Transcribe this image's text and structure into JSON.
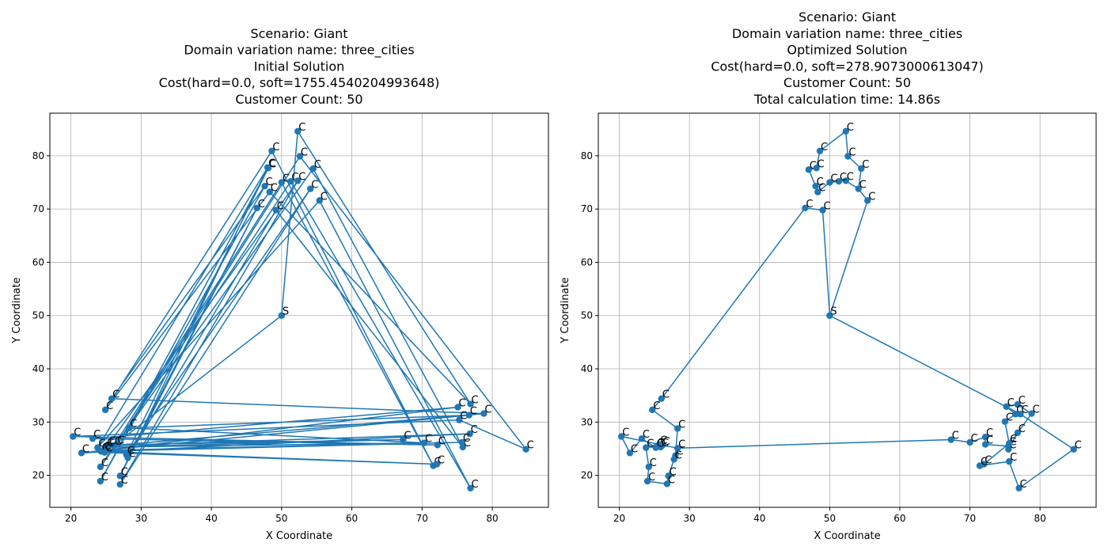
{
  "chart_data": [
    {
      "type": "line",
      "title": [
        "Scenario: Giant",
        "Domain variation name: three_cities",
        "Initial Solution",
        "Cost(hard=0.0, soft=1755.4540204993648)",
        "Customer Count: 50"
      ],
      "xlabel": "X Coordinate",
      "ylabel": "Y Coordinate",
      "xlim": [
        17,
        88
      ],
      "ylim": [
        14,
        88
      ],
      "xticks": [
        20,
        30,
        40,
        50,
        60,
        70,
        80
      ],
      "yticks": [
        20,
        30,
        40,
        50,
        60,
        70,
        80
      ],
      "grid": true,
      "depot": {
        "x": 50,
        "y": 50,
        "label": "S"
      },
      "customer_label": "C",
      "route": [
        [
          50,
          50
        ],
        [
          52.3,
          84.6
        ],
        [
          76.9,
          33.4
        ],
        [
          48.3,
          73.2
        ],
        [
          24.9,
          32.3
        ],
        [
          48.6,
          80.9
        ],
        [
          71.6,
          21.8
        ],
        [
          50,
          75
        ],
        [
          24.2,
          21.6
        ],
        [
          54.5,
          77.6
        ],
        [
          75.8,
          25.3
        ],
        [
          49.2,
          69.8
        ],
        [
          28.1,
          23.3
        ],
        [
          46.5,
          70.2
        ],
        [
          27,
          19.9
        ],
        [
          48,
          77.8
        ],
        [
          23.8,
          25.2
        ],
        [
          55.4,
          71.6
        ],
        [
          76.9,
          17.6
        ],
        [
          51.3,
          75.2
        ],
        [
          26.5,
          25.8
        ],
        [
          52.6,
          79.9
        ],
        [
          84.8,
          24.9
        ],
        [
          75.3,
          30.4
        ],
        [
          20.3,
          27.3
        ],
        [
          72.2,
          25.7
        ],
        [
          23.1,
          26.9
        ],
        [
          75.1,
          32.8
        ],
        [
          21.5,
          24.2
        ],
        [
          76.8,
          27.8
        ],
        [
          26.1,
          25.6
        ],
        [
          78.8,
          31.6
        ],
        [
          25.8,
          34.4
        ],
        [
          47.6,
          74.3
        ],
        [
          24.2,
          18.9
        ],
        [
          48.1,
          77.7
        ],
        [
          27.9,
          23.9
        ],
        [
          54.1,
          73.8
        ],
        [
          27,
          18.3
        ],
        [
          52.3,
          75.3
        ],
        [
          25.3,
          25.7
        ],
        [
          67.3,
          26.7
        ],
        [
          25,
          25.3
        ],
        [
          70.3,
          26.1
        ],
        [
          28.3,
          28.9
        ],
        [
          76.7,
          31.3
        ],
        [
          24.6,
          24.7
        ],
        [
          75.7,
          26.2
        ],
        [
          24.3,
          24.5
        ],
        [
          72.1,
          22.1
        ],
        [
          24.8,
          24.3
        ],
        [
          50,
          50
        ]
      ],
      "calc_time": ""
    },
    {
      "type": "line",
      "title": [
        "Scenario: Giant",
        "Domain variation name: three_cities",
        "Optimized Solution",
        "Cost(hard=0.0, soft=278.9073000613047)",
        "Customer Count: 50",
        "Total calculation time: 14.86s"
      ],
      "xlabel": "X Coordinate",
      "ylabel": "Y Coordinate",
      "xlim": [
        17,
        88
      ],
      "ylim": [
        14,
        88
      ],
      "xticks": [
        20,
        30,
        40,
        50,
        60,
        70,
        80
      ],
      "yticks": [
        20,
        30,
        40,
        50,
        60,
        70,
        80
      ],
      "grid": true,
      "depot": {
        "x": 50,
        "y": 50,
        "label": "S"
      },
      "customer_label": "C",
      "route": [
        [
          50,
          50
        ],
        [
          55.4,
          71.6
        ],
        [
          54.1,
          73.8
        ],
        [
          52.3,
          75.3
        ],
        [
          51.3,
          75.2
        ],
        [
          50,
          75
        ],
        [
          48.3,
          73.2
        ],
        [
          48,
          74.3
        ],
        [
          47,
          77.4
        ],
        [
          48.1,
          77.7
        ],
        [
          48.6,
          80.9
        ],
        [
          52.3,
          84.6
        ],
        [
          52.6,
          79.9
        ],
        [
          54.5,
          77.6
        ],
        [
          54.1,
          73.8
        ],
        [
          55.4,
          71.6
        ],
        [
          50,
          50
        ],
        [
          49,
          69.8
        ],
        [
          46.5,
          70.2
        ],
        [
          26,
          34.4
        ],
        [
          24.7,
          32.3
        ],
        [
          28.3,
          28.8
        ],
        [
          28,
          23.7
        ],
        [
          27.8,
          23
        ],
        [
          27,
          19.9
        ],
        [
          26.8,
          18.4
        ],
        [
          24,
          18.9
        ],
        [
          24.2,
          21.6
        ],
        [
          23.8,
          25.2
        ],
        [
          25.3,
          25.4
        ],
        [
          25.7,
          25.8
        ],
        [
          26.1,
          25.6
        ],
        [
          25.9,
          25.3
        ],
        [
          25.2,
          25.2
        ],
        [
          23.2,
          26.9
        ],
        [
          21.5,
          24.2
        ],
        [
          20.3,
          27.3
        ],
        [
          28.3,
          25.1
        ],
        [
          67.3,
          26.7
        ],
        [
          70,
          26.2
        ],
        [
          72.2,
          27.2
        ],
        [
          72.2,
          25.8
        ],
        [
          75.5,
          25.5
        ],
        [
          75.5,
          24.9
        ],
        [
          76.8,
          28
        ],
        [
          78.8,
          31.6
        ],
        [
          76.8,
          33.3
        ],
        [
          75.2,
          32.9
        ],
        [
          76.5,
          31.5
        ],
        [
          75,
          30.1
        ],
        [
          75.6,
          26
        ],
        [
          72,
          22.1
        ],
        [
          71.4,
          21.8
        ],
        [
          75.6,
          22.6
        ],
        [
          77,
          17.6
        ],
        [
          84.8,
          24.9
        ],
        [
          77.2,
          31.5
        ],
        [
          50,
          50
        ]
      ],
      "calc_time": "Total calculation time: 14.86s"
    }
  ]
}
